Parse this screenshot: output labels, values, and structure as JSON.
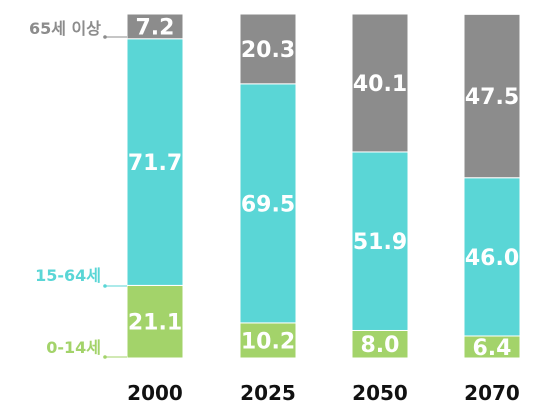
{
  "chart_data": {
    "type": "bar",
    "stacked": true,
    "categories": [
      "2000",
      "2025",
      "2050",
      "2070"
    ],
    "series": [
      {
        "name": "0-14세",
        "values": [
          21.1,
          10.2,
          8.0,
          6.4
        ],
        "color": "#a3d36a",
        "labels": [
          "21.1",
          "10.2",
          "8.0",
          "6.4"
        ]
      },
      {
        "name": "15-64세",
        "values": [
          71.7,
          69.5,
          51.9,
          46.0
        ],
        "color": "#5ad6d6",
        "labels": [
          "71.7",
          "69.5",
          "51.9",
          "46.0"
        ]
      },
      {
        "name": "65세 이상",
        "values": [
          7.2,
          20.3,
          40.1,
          47.5
        ],
        "color": "#8c8c8c",
        "labels": [
          "7.2",
          "20.3",
          "40.1",
          "47.5"
        ]
      }
    ],
    "ylim": [
      0,
      100
    ],
    "grid": false,
    "legend": "left",
    "title": "",
    "xlabel": "",
    "ylabel": ""
  }
}
